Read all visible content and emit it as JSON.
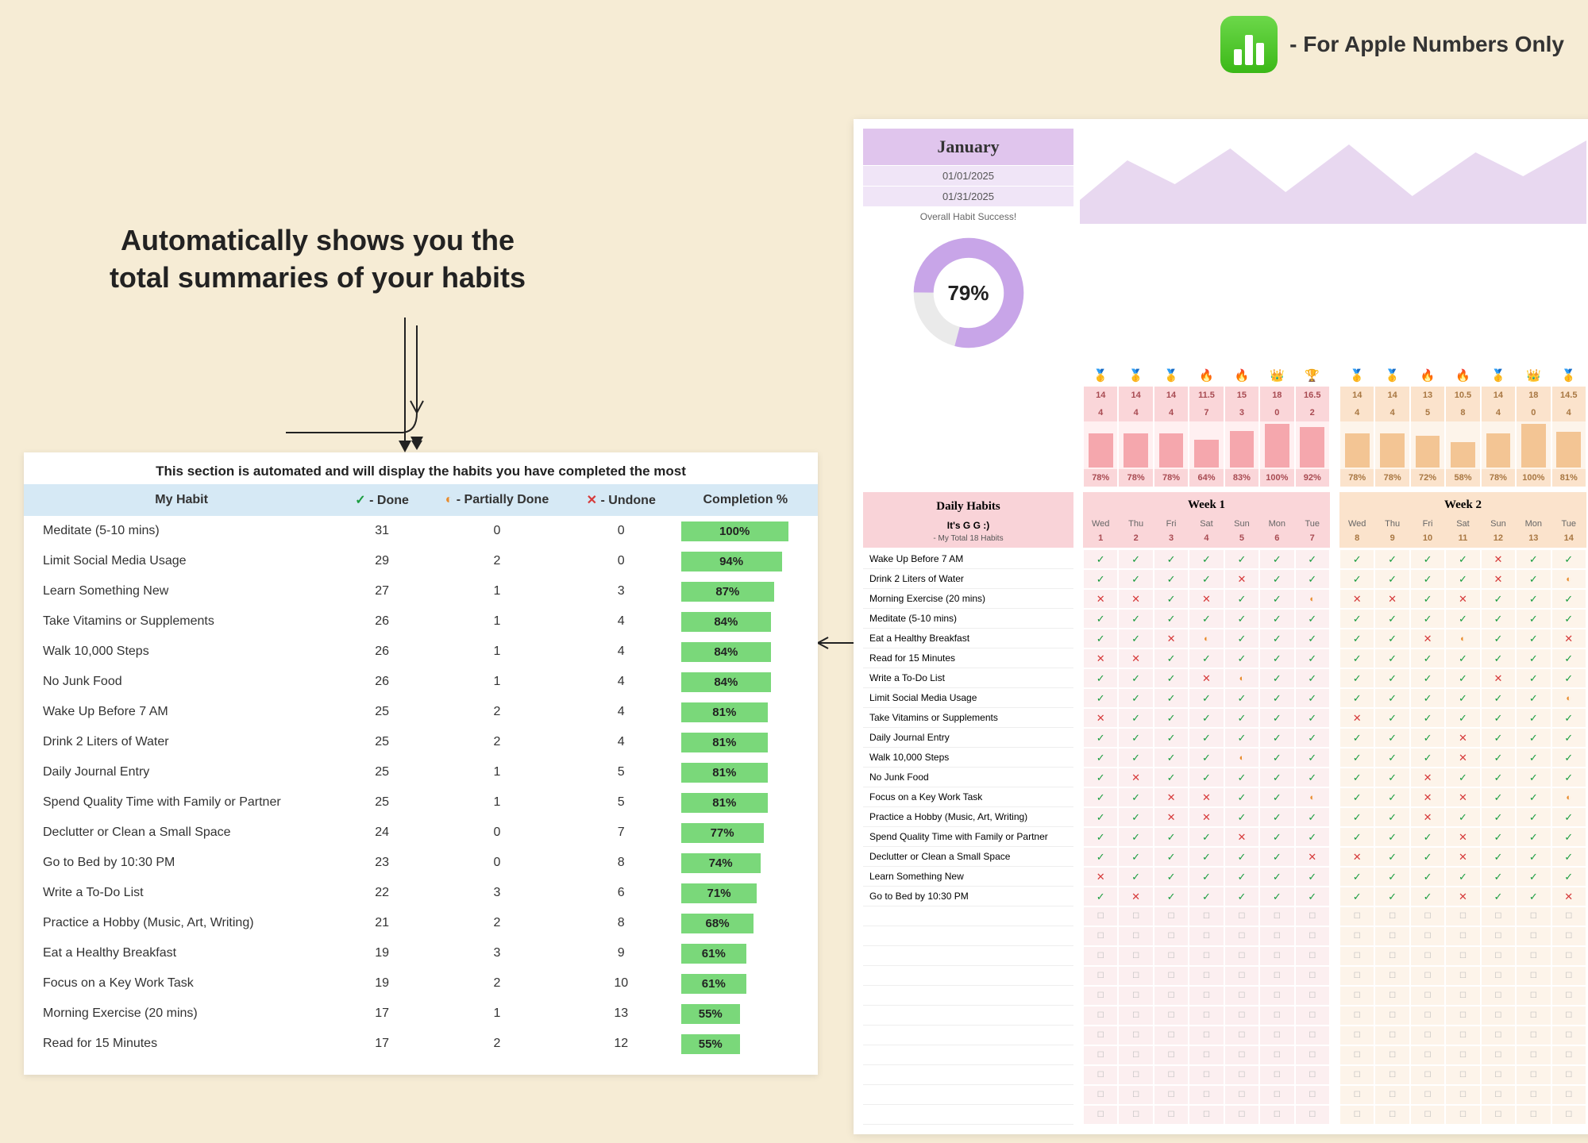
{
  "badge_text": "- For Apple Numbers Only",
  "heading": "Automatically shows you the total summaries of your habits",
  "summary": {
    "title": "This section is automated and will display the habits you have completed the most",
    "columns": {
      "habit": "My Habit",
      "done_h": "- Done",
      "partial_h": "- Partially Done",
      "undone_h": "- Undone",
      "compl": "Completion %"
    },
    "rows": [
      {
        "h": "Meditate (5-10 mins)",
        "d": 31,
        "p": 0,
        "u": 0,
        "pct": "100%"
      },
      {
        "h": "Limit Social Media Usage",
        "d": 29,
        "p": 2,
        "u": 0,
        "pct": "94%"
      },
      {
        "h": "Learn Something New",
        "d": 27,
        "p": 1,
        "u": 3,
        "pct": "87%"
      },
      {
        "h": "Take Vitamins or Supplements",
        "d": 26,
        "p": 1,
        "u": 4,
        "pct": "84%"
      },
      {
        "h": "Walk 10,000 Steps",
        "d": 26,
        "p": 1,
        "u": 4,
        "pct": "84%"
      },
      {
        "h": "No Junk Food",
        "d": 26,
        "p": 1,
        "u": 4,
        "pct": "84%"
      },
      {
        "h": "Wake Up Before 7 AM",
        "d": 25,
        "p": 2,
        "u": 4,
        "pct": "81%"
      },
      {
        "h": "Drink 2 Liters of Water",
        "d": 25,
        "p": 2,
        "u": 4,
        "pct": "81%"
      },
      {
        "h": "Daily Journal Entry",
        "d": 25,
        "p": 1,
        "u": 5,
        "pct": "81%"
      },
      {
        "h": "Spend Quality Time with Family or Partner",
        "d": 25,
        "p": 1,
        "u": 5,
        "pct": "81%"
      },
      {
        "h": "Declutter or Clean a Small Space",
        "d": 24,
        "p": 0,
        "u": 7,
        "pct": "77%"
      },
      {
        "h": "Go to Bed by 10:30 PM",
        "d": 23,
        "p": 0,
        "u": 8,
        "pct": "74%"
      },
      {
        "h": "Write a To-Do List",
        "d": 22,
        "p": 3,
        "u": 6,
        "pct": "71%"
      },
      {
        "h": "Practice a Hobby (Music, Art, Writing)",
        "d": 21,
        "p": 2,
        "u": 8,
        "pct": "68%"
      },
      {
        "h": "Eat a Healthy Breakfast",
        "d": 19,
        "p": 3,
        "u": 9,
        "pct": "61%"
      },
      {
        "h": "Focus on a Key Work Task",
        "d": 19,
        "p": 2,
        "u": 10,
        "pct": "61%"
      },
      {
        "h": "Morning Exercise (20 mins)",
        "d": 17,
        "p": 1,
        "u": 13,
        "pct": "55%"
      },
      {
        "h": "Read for 15 Minutes",
        "d": 17,
        "p": 2,
        "u": 12,
        "pct": "55%"
      }
    ],
    "bar_color": "#7ad87a",
    "header_bg": "#d6e9f5"
  },
  "tracker": {
    "month": "January",
    "date1": "01/01/2025",
    "date2": "01/31/2025",
    "success_label": "Overall Habit Success!",
    "donut_pct": "79%",
    "donut_color": "#c8a5e8",
    "donut_track": "#eaeaea",
    "daily_habits_header": "Daily Habits",
    "gg": "It's G G :)",
    "total_label": "- My Total 18 Habits",
    "week1_label": "Week 1",
    "week2_label": "Week 2",
    "week1_bg": "#fad6d9",
    "week2_bg": "#fbe3cc",
    "week1_cell_bg": "#fceff0",
    "week2_cell_bg": "#fdf4ea",
    "days_short": [
      "Wed",
      "Thu",
      "Fri",
      "Sat",
      "Sun",
      "Mon",
      "Tue"
    ],
    "week1_nums": [
      1,
      2,
      3,
      4,
      5,
      6,
      7
    ],
    "week2_nums": [
      8,
      9,
      10,
      11,
      12,
      13,
      14
    ],
    "week1_stats": {
      "emojis": [
        "🥇",
        "🥇",
        "🥇",
        "🔥",
        "🔥",
        "👑",
        "🏆"
      ],
      "r1": [
        14,
        14,
        14,
        11.5,
        15,
        18,
        16.5
      ],
      "r2": [
        4,
        4,
        4,
        7,
        3,
        0,
        2
      ],
      "pct": [
        "78%",
        "78%",
        "78%",
        "64%",
        "83%",
        "100%",
        "92%"
      ]
    },
    "week2_stats": {
      "emojis": [
        "🥇",
        "🥇",
        "🔥",
        "🔥",
        "🥇",
        "👑",
        "🥇"
      ],
      "r1": [
        14,
        14,
        13,
        10.5,
        14,
        18,
        14.5
      ],
      "r2": [
        4,
        4,
        5,
        8,
        4,
        0,
        4
      ],
      "pct": [
        "78%",
        "78%",
        "72%",
        "58%",
        "78%",
        "100%",
        "81%"
      ]
    },
    "habits": [
      "Wake Up Before 7 AM",
      "Drink 2 Liters of Water",
      "Morning Exercise (20 mins)",
      "Meditate (5-10 mins)",
      "Eat a Healthy Breakfast",
      "Read for 15 Minutes",
      "Write a To-Do List",
      "Limit Social Media Usage",
      "Take Vitamins or Supplements",
      "Daily Journal Entry",
      "Walk 10,000 Steps",
      "No Junk Food",
      "Focus on a Key Work Task",
      "Practice a Hobby (Music, Art, Writing)",
      "Spend Quality Time with Family or Partner",
      "Declutter or Clean a Small Space",
      "Learn Something New",
      "Go to Bed by 10:30 PM"
    ],
    "empty_rows": 11,
    "grid_w1": [
      [
        "g",
        "g",
        "g",
        "g",
        "g",
        "g",
        "g"
      ],
      [
        "g",
        "g",
        "g",
        "g",
        "x",
        "g",
        "g"
      ],
      [
        "x",
        "x",
        "g",
        "x",
        "g",
        "g",
        "o"
      ],
      [
        "g",
        "g",
        "g",
        "g",
        "g",
        "g",
        "g"
      ],
      [
        "g",
        "g",
        "x",
        "o",
        "g",
        "g",
        "g"
      ],
      [
        "x",
        "x",
        "g",
        "g",
        "g",
        "g",
        "g"
      ],
      [
        "g",
        "g",
        "g",
        "x",
        "o",
        "g",
        "g"
      ],
      [
        "g",
        "g",
        "g",
        "g",
        "g",
        "g",
        "g"
      ],
      [
        "x",
        "g",
        "g",
        "g",
        "g",
        "g",
        "g"
      ],
      [
        "g",
        "g",
        "g",
        "g",
        "g",
        "g",
        "g"
      ],
      [
        "g",
        "g",
        "g",
        "g",
        "o",
        "g",
        "g"
      ],
      [
        "g",
        "x",
        "g",
        "g",
        "g",
        "g",
        "g"
      ],
      [
        "g",
        "g",
        "x",
        "x",
        "g",
        "g",
        "o"
      ],
      [
        "g",
        "g",
        "x",
        "x",
        "g",
        "g",
        "g"
      ],
      [
        "g",
        "g",
        "g",
        "g",
        "x",
        "g",
        "g"
      ],
      [
        "g",
        "g",
        "g",
        "g",
        "g",
        "g",
        "x"
      ],
      [
        "x",
        "g",
        "g",
        "g",
        "g",
        "g",
        "g"
      ],
      [
        "g",
        "x",
        "g",
        "g",
        "g",
        "g",
        "g"
      ]
    ],
    "grid_w2": [
      [
        "g",
        "g",
        "g",
        "g",
        "x",
        "g",
        "g"
      ],
      [
        "g",
        "g",
        "g",
        "g",
        "x",
        "g",
        "o"
      ],
      [
        "x",
        "x",
        "g",
        "x",
        "g",
        "g",
        "g"
      ],
      [
        "g",
        "g",
        "g",
        "g",
        "g",
        "g",
        "g"
      ],
      [
        "g",
        "g",
        "x",
        "o",
        "g",
        "g",
        "x"
      ],
      [
        "g",
        "g",
        "g",
        "g",
        "g",
        "g",
        "g"
      ],
      [
        "g",
        "g",
        "g",
        "g",
        "x",
        "g",
        "g"
      ],
      [
        "g",
        "g",
        "g",
        "g",
        "g",
        "g",
        "o"
      ],
      [
        "x",
        "g",
        "g",
        "g",
        "g",
        "g",
        "g"
      ],
      [
        "g",
        "g",
        "g",
        "x",
        "g",
        "g",
        "g"
      ],
      [
        "g",
        "g",
        "g",
        "x",
        "g",
        "g",
        "g"
      ],
      [
        "g",
        "g",
        "x",
        "g",
        "g",
        "g",
        "g"
      ],
      [
        "g",
        "g",
        "x",
        "x",
        "g",
        "g",
        "o"
      ],
      [
        "g",
        "g",
        "x",
        "g",
        "g",
        "g",
        "g"
      ],
      [
        "g",
        "g",
        "g",
        "x",
        "g",
        "g",
        "g"
      ],
      [
        "x",
        "g",
        "g",
        "x",
        "g",
        "g",
        "g"
      ],
      [
        "g",
        "g",
        "g",
        "g",
        "g",
        "g",
        "g"
      ],
      [
        "g",
        "g",
        "g",
        "x",
        "g",
        "g",
        "x"
      ]
    ]
  }
}
